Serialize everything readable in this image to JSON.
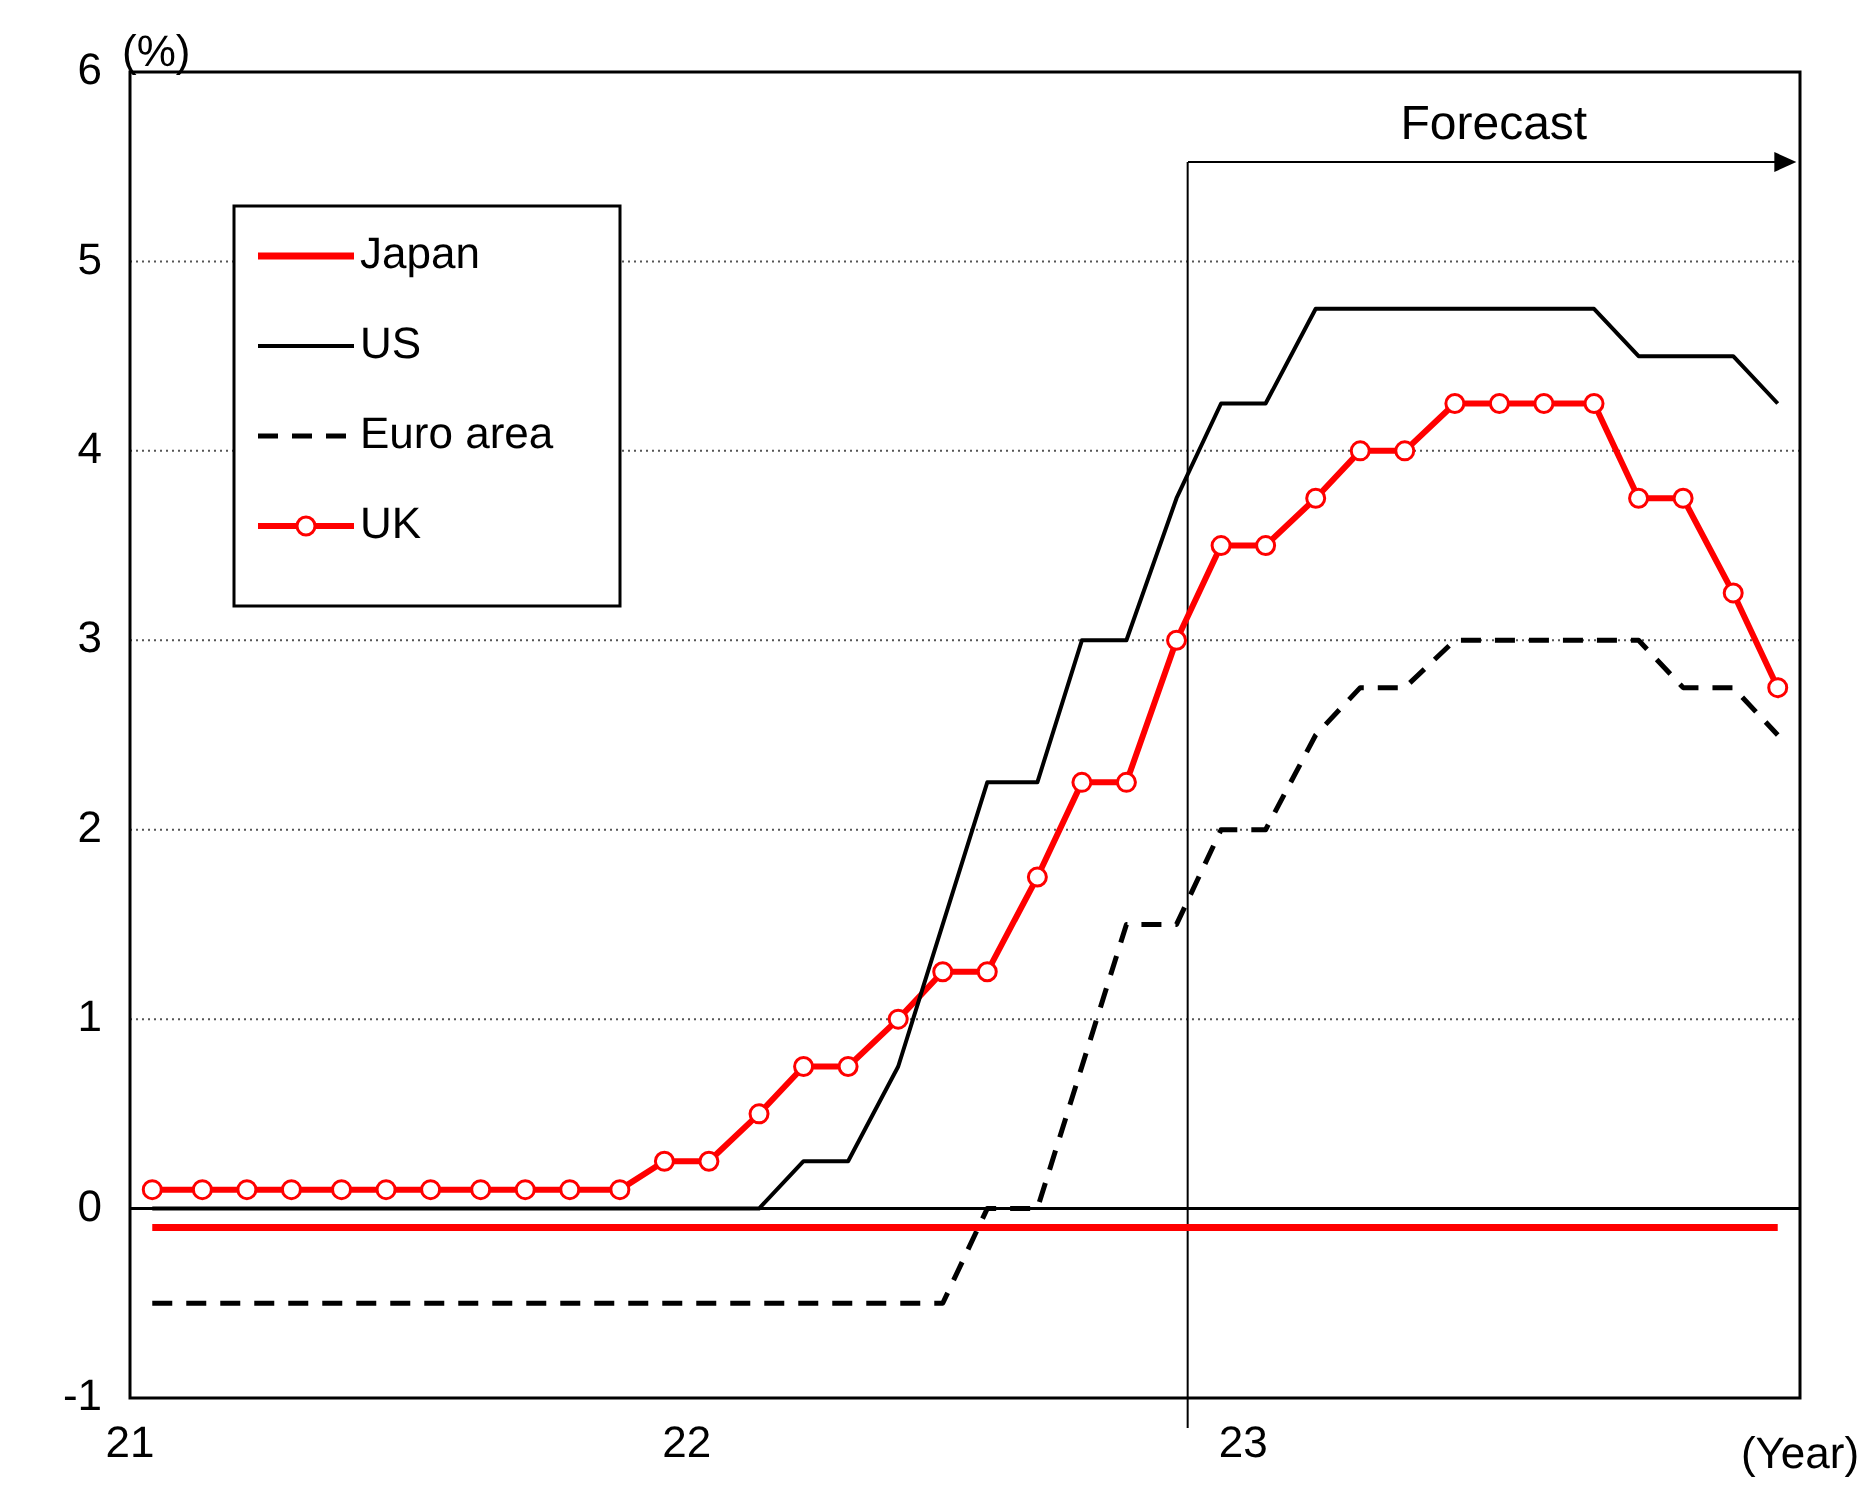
{
  "chart_data": {
    "type": "line",
    "xlabel": "(Year)",
    "ylabel": "(%)",
    "x": [
      21.04,
      21.13,
      21.21,
      21.29,
      21.38,
      21.46,
      21.54,
      21.63,
      21.71,
      21.79,
      21.88,
      21.96,
      22.04,
      22.13,
      22.21,
      22.29,
      22.38,
      22.46,
      22.54,
      22.63,
      22.71,
      22.79,
      22.88,
      22.96,
      23.04,
      23.13,
      23.21,
      23.29,
      23.38,
      23.46,
      23.54,
      23.63,
      23.71,
      23.79,
      23.88,
      23.96
    ],
    "xlim": [
      21,
      24
    ],
    "xticks": [
      21,
      22,
      23
    ],
    "ylim": [
      -1,
      6
    ],
    "yticks": [
      -1,
      0,
      1,
      2,
      3,
      4,
      5,
      6
    ],
    "grid": "y",
    "legend": "top left",
    "series": [
      {
        "name": "Japan",
        "color": "#ff0000",
        "marker": "none",
        "line_style": "solid",
        "values": [
          -0.1,
          -0.1,
          -0.1,
          -0.1,
          -0.1,
          -0.1,
          -0.1,
          -0.1,
          -0.1,
          -0.1,
          -0.1,
          -0.1,
          -0.1,
          -0.1,
          -0.1,
          -0.1,
          -0.1,
          -0.1,
          -0.1,
          -0.1,
          -0.1,
          -0.1,
          -0.1,
          -0.1,
          -0.1,
          -0.1,
          -0.1,
          -0.1,
          -0.1,
          -0.1,
          -0.1,
          -0.1,
          -0.1,
          -0.1,
          -0.1,
          -0.1
        ]
      },
      {
        "name": "US",
        "color": "#000000",
        "marker": "none",
        "line_style": "solid",
        "values": [
          0,
          0,
          0,
          0,
          0,
          0,
          0,
          0,
          0,
          0,
          0,
          0,
          0,
          0,
          0.25,
          0.25,
          0.75,
          1.5,
          2.25,
          2.25,
          3,
          3,
          3.75,
          4.25,
          4.25,
          4.75,
          4.75,
          4.75,
          4.75,
          4.75,
          4.75,
          4.75,
          4.5,
          4.5,
          4.5,
          4.25
        ]
      },
      {
        "name": "Euro area",
        "color": "#000000",
        "marker": "none",
        "line_style": "dashed",
        "values": [
          -0.5,
          -0.5,
          -0.5,
          -0.5,
          -0.5,
          -0.5,
          -0.5,
          -0.5,
          -0.5,
          -0.5,
          -0.5,
          -0.5,
          -0.5,
          -0.5,
          -0.5,
          -0.5,
          -0.5,
          -0.5,
          0,
          0,
          0.75,
          1.5,
          1.5,
          2,
          2,
          2.5,
          2.75,
          2.75,
          3,
          3,
          3,
          3,
          3,
          2.75,
          2.75,
          2.5
        ]
      },
      {
        "name": "UK",
        "color": "#ff0000",
        "marker": "circle",
        "line_style": "solid",
        "values": [
          0.1,
          0.1,
          0.1,
          0.1,
          0.1,
          0.1,
          0.1,
          0.1,
          0.1,
          0.1,
          0.1,
          0.25,
          0.25,
          0.5,
          0.75,
          0.75,
          1,
          1.25,
          1.25,
          1.75,
          2.25,
          2.25,
          3,
          3.5,
          3.5,
          3.75,
          4,
          4,
          4.25,
          4.25,
          4.25,
          4.25,
          3.75,
          3.75,
          3.25,
          2.75
        ]
      }
    ],
    "ref_lines": [
      {
        "axis": "x",
        "value": 22.9
      }
    ],
    "annotations": [
      "Forecast"
    ]
  }
}
